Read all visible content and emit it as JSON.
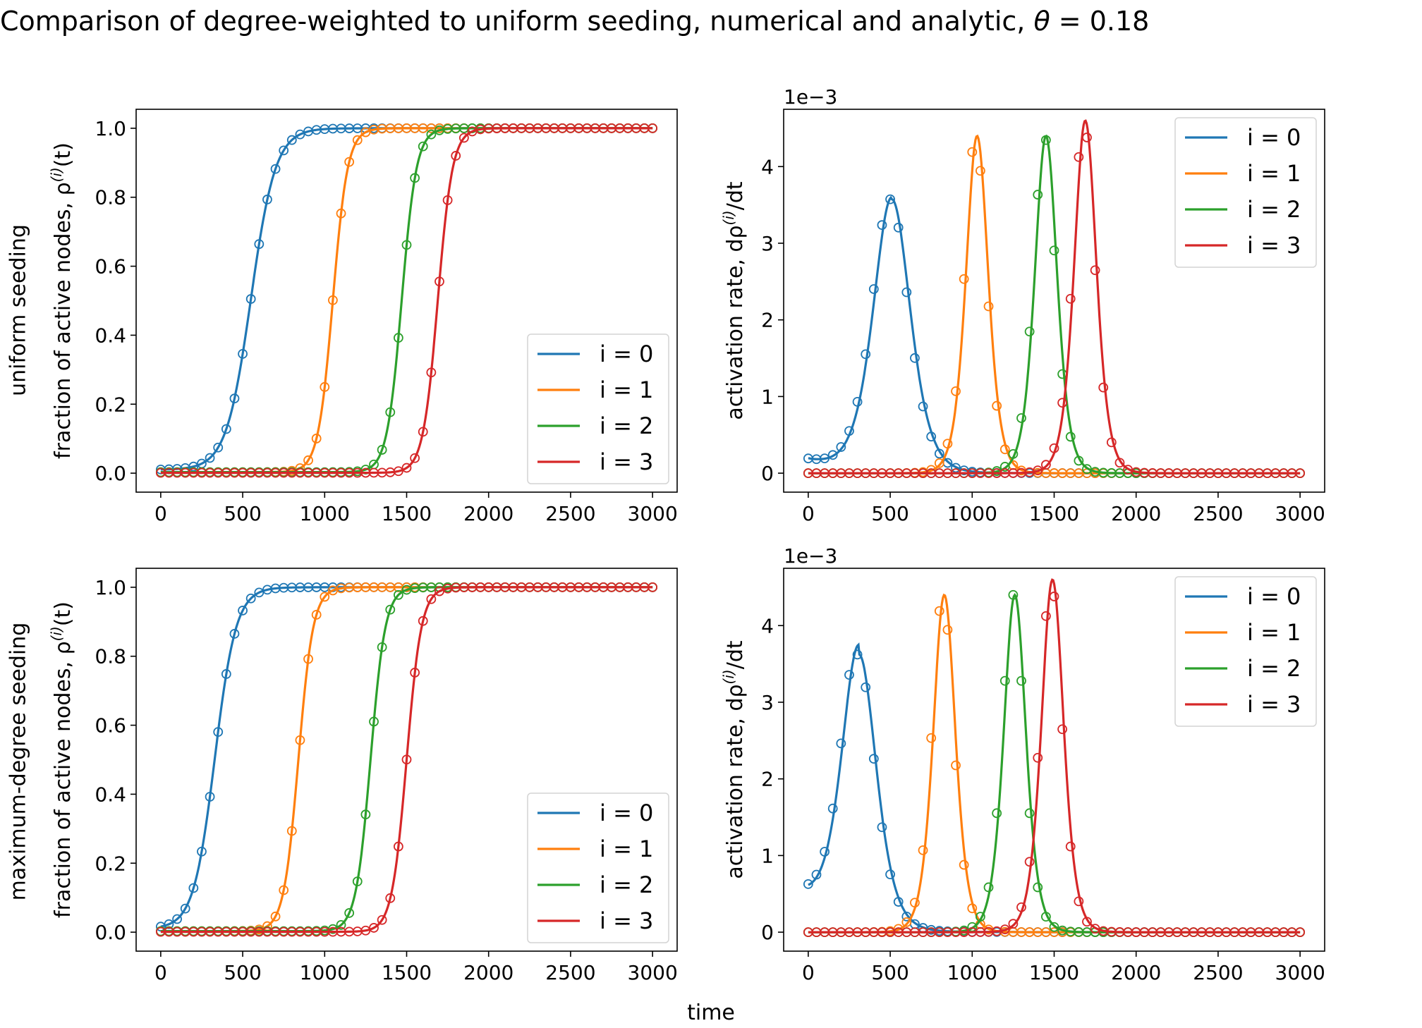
{
  "title": "Comparison of degree-weighted to uniform seeding, numerical and analytic, θ = 0.18",
  "xlabel": "time",
  "row_labels": [
    "uniform seeding",
    "maximum-degree seeding"
  ],
  "colors": {
    "i0": "#1f77b4",
    "i1": "#ff7f0e",
    "i2": "#2ca02c",
    "i3": "#d62728"
  },
  "chart_data": [
    {
      "type": "line",
      "row": "uniform seeding",
      "ylabel": "fraction of active nodes, ρ(i)(t)",
      "xlim": [
        0,
        3000
      ],
      "ylim": [
        0,
        1
      ],
      "xticks": [
        0,
        500,
        1000,
        1500,
        2000,
        2500,
        3000
      ],
      "xtick_labels": [
        "0",
        "500",
        "1000",
        "1500",
        "2000",
        "2500",
        "3000"
      ],
      "yticks": [
        0,
        0.2,
        0.4,
        0.6,
        0.8,
        1.0
      ],
      "ytick_labels": [
        "0.0",
        "0.2",
        "0.4",
        "0.6",
        "0.8",
        "1.0"
      ],
      "scale_label": "",
      "legend_position": "lower-right",
      "kind": "sigmoid",
      "series": [
        {
          "name": "i = 0",
          "center": 550,
          "width": 75,
          "start": 0.01
        },
        {
          "name": "i = 1",
          "center": 1050,
          "width": 45,
          "start": 0.003
        },
        {
          "name": "i = 2",
          "center": 1470,
          "width": 45,
          "start": 0.003
        },
        {
          "name": "i = 3",
          "center": 1690,
          "width": 45,
          "start": 0.001
        }
      ]
    },
    {
      "type": "line",
      "row": "uniform seeding",
      "ylabel": "activation rate, dρ(i)/dt",
      "xlim": [
        0,
        3000
      ],
      "ylim": [
        0,
        0.0045
      ],
      "xticks": [
        0,
        500,
        1000,
        1500,
        2000,
        2500,
        3000
      ],
      "xtick_labels": [
        "0",
        "500",
        "1000",
        "1500",
        "2000",
        "2500",
        "3000"
      ],
      "yticks": [
        0,
        0.001,
        0.002,
        0.003,
        0.004
      ],
      "ytick_labels": [
        "0",
        "1",
        "2",
        "3",
        "4"
      ],
      "scale_label": "1e−3",
      "legend_position": "upper-right",
      "kind": "peak",
      "series": [
        {
          "name": "i = 0",
          "center": 510,
          "width": 75,
          "peak": 0.0036,
          "base": 0.00018
        },
        {
          "name": "i = 1",
          "center": 1030,
          "width": 45,
          "peak": 0.0044,
          "base": 0
        },
        {
          "name": "i = 2",
          "center": 1450,
          "width": 45,
          "peak": 0.0044,
          "base": 0
        },
        {
          "name": "i = 3",
          "center": 1690,
          "width": 45,
          "peak": 0.0046,
          "base": 0
        }
      ]
    },
    {
      "type": "line",
      "row": "maximum-degree seeding",
      "ylabel": "fraction of active nodes, ρ(i)(t)",
      "xlim": [
        0,
        3000
      ],
      "ylim": [
        0,
        1
      ],
      "xticks": [
        0,
        500,
        1000,
        1500,
        2000,
        2500,
        3000
      ],
      "xtick_labels": [
        "0",
        "500",
        "1000",
        "1500",
        "2000",
        "2500",
        "3000"
      ],
      "yticks": [
        0,
        0.2,
        0.4,
        0.6,
        0.8,
        1.0
      ],
      "ytick_labels": [
        "0.0",
        "0.2",
        "0.4",
        "0.6",
        "0.8",
        "1.0"
      ],
      "scale_label": "",
      "legend_position": "lower-right",
      "kind": "sigmoid",
      "series": [
        {
          "name": "i = 0",
          "center": 330,
          "width": 65,
          "start": 0.01
        },
        {
          "name": "i = 1",
          "center": 840,
          "width": 45,
          "start": 0.003
        },
        {
          "name": "i = 2",
          "center": 1280,
          "width": 45,
          "start": 0.003
        },
        {
          "name": "i = 3",
          "center": 1500,
          "width": 45,
          "start": 0.001
        }
      ]
    },
    {
      "type": "line",
      "row": "maximum-degree seeding",
      "ylabel": "activation rate, dρ(i)/dt",
      "xlim": [
        0,
        3000
      ],
      "ylim": [
        0,
        0.0045
      ],
      "xticks": [
        0,
        500,
        1000,
        1500,
        2000,
        2500,
        3000
      ],
      "xtick_labels": [
        "0",
        "500",
        "1000",
        "1500",
        "2000",
        "2500",
        "3000"
      ],
      "yticks": [
        0,
        0.001,
        0.002,
        0.003,
        0.004
      ],
      "ytick_labels": [
        "0",
        "1",
        "2",
        "3",
        "4"
      ],
      "scale_label": "1e−3",
      "legend_position": "upper-right",
      "kind": "peak",
      "series": [
        {
          "name": "i = 0",
          "center": 310,
          "width": 70,
          "peak": 0.00375,
          "base": 0.00045
        },
        {
          "name": "i = 1",
          "center": 830,
          "width": 45,
          "peak": 0.0044,
          "base": 0
        },
        {
          "name": "i = 2",
          "center": 1260,
          "width": 45,
          "peak": 0.0044,
          "base": 0
        },
        {
          "name": "i = 3",
          "center": 1490,
          "width": 45,
          "peak": 0.0046,
          "base": 0
        }
      ]
    }
  ]
}
